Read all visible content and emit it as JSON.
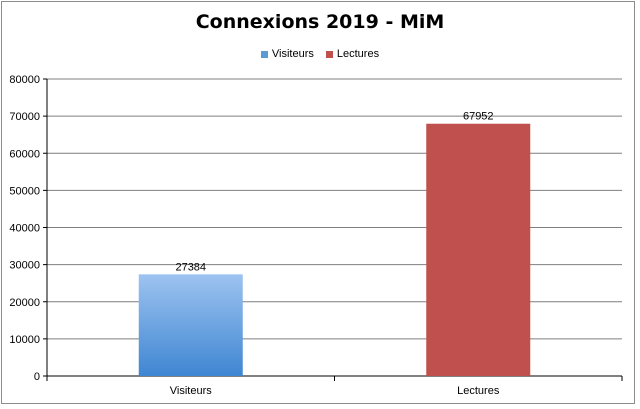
{
  "chart_data": {
    "type": "bar",
    "title": "Connexions 2019 - MiM",
    "categories": [
      "Visiteurs",
      "Lectures"
    ],
    "values": [
      27384,
      67952
    ],
    "data_labels": [
      "27384",
      "67952"
    ],
    "bar_colors": [
      "#5b9bd5",
      "#c0504d"
    ],
    "legend": [
      {
        "label": "Visiteurs",
        "color": "#5b9bd5"
      },
      {
        "label": "Lectures",
        "color": "#c0504d"
      }
    ],
    "legend_position": "top",
    "ylim": [
      0,
      80000
    ],
    "y_ticks": [
      "0",
      "10000",
      "20000",
      "30000",
      "40000",
      "50000",
      "60000",
      "70000",
      "80000"
    ],
    "grid": true,
    "xlabel": "",
    "ylabel": ""
  }
}
